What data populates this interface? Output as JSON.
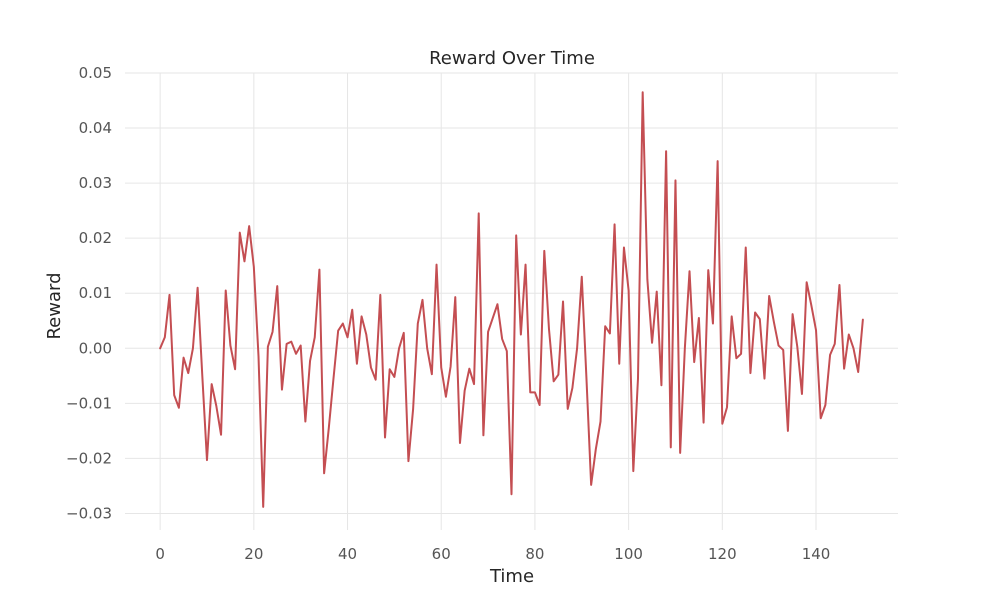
{
  "chart_data": {
    "type": "line",
    "title": "Reward Over Time",
    "xlabel": "Time",
    "ylabel": "Reward",
    "xlim": [
      -7.5,
      157.5
    ],
    "ylim": [
      -0.033,
      0.05
    ],
    "xticks": [
      0,
      20,
      40,
      60,
      80,
      100,
      120,
      140
    ],
    "xtick_labels": [
      "0",
      "20",
      "40",
      "60",
      "80",
      "100",
      "120",
      "140"
    ],
    "yticks": [
      -0.03,
      -0.02,
      -0.01,
      0.0,
      0.01,
      0.02,
      0.03,
      0.04,
      0.05
    ],
    "ytick_labels": [
      "−0.03",
      "−0.02",
      "−0.01",
      "0.00",
      "0.01",
      "0.02",
      "0.03",
      "0.04",
      "0.05"
    ],
    "grid": true,
    "line_color": "#c44e52",
    "series": [
      {
        "x": [
          0,
          1,
          2,
          3,
          4,
          5,
          6,
          7,
          8,
          9,
          10,
          11,
          12,
          13,
          14,
          15,
          16,
          17,
          18,
          19,
          20,
          21,
          22,
          23,
          24,
          25,
          26,
          27,
          28,
          29,
          30,
          31,
          32,
          33,
          34,
          35,
          36,
          37,
          38,
          39,
          40,
          41,
          42,
          43,
          44,
          45,
          46,
          47,
          48,
          49,
          50,
          51,
          52,
          53,
          54,
          55,
          56,
          57,
          58,
          59,
          60,
          61,
          62,
          63,
          64,
          65,
          66,
          67,
          68,
          69,
          70,
          71,
          72,
          73,
          74,
          75,
          76,
          77,
          78,
          79,
          80,
          81,
          82,
          83,
          84,
          85,
          86,
          87,
          88,
          89,
          90,
          91,
          92,
          93,
          94,
          95,
          96,
          97,
          98,
          99,
          100,
          101,
          102,
          103,
          104,
          105,
          106,
          107,
          108,
          109,
          110,
          111,
          112,
          113,
          114,
          115,
          116,
          117,
          118,
          119,
          120,
          121,
          122,
          123,
          124,
          125,
          126,
          127,
          128,
          129,
          130,
          131,
          132,
          133,
          134,
          135,
          136,
          137,
          138,
          139,
          140,
          141,
          142,
          143,
          144,
          145,
          146,
          147,
          148,
          149,
          150
        ],
        "values": [
          0.0,
          0.002,
          0.0097,
          -0.0085,
          -0.0108,
          -0.0017,
          -0.0045,
          0.0,
          0.011,
          -0.005,
          -0.0203,
          -0.0065,
          -0.0105,
          -0.0157,
          0.0105,
          0.0005,
          -0.0038,
          0.021,
          0.0158,
          0.0222,
          0.0148,
          -0.0015,
          -0.0288,
          0.0003,
          0.003,
          0.0113,
          -0.0075,
          0.0008,
          0.0012,
          -0.001,
          0.0005,
          -0.0133,
          -0.0023,
          0.002,
          0.0143,
          -0.0227,
          -0.0145,
          -0.0055,
          0.0032,
          0.0045,
          0.002,
          0.007,
          -0.0028,
          0.0058,
          0.0025,
          -0.0035,
          -0.0057,
          0.0097,
          -0.0162,
          -0.0038,
          -0.0052,
          0.0,
          0.0028,
          -0.0205,
          -0.011,
          0.0045,
          0.0088,
          0.0,
          -0.0047,
          0.0152,
          -0.0035,
          -0.0088,
          -0.0033,
          0.0093,
          -0.0172,
          -0.0077,
          -0.0037,
          -0.0065,
          0.0245,
          -0.0158,
          0.003,
          0.0055,
          0.008,
          0.0017,
          -0.0005,
          -0.0265,
          0.0205,
          0.0025,
          0.0152,
          -0.008,
          -0.008,
          -0.0103,
          0.0177,
          0.0035,
          -0.006,
          -0.0048,
          0.0085,
          -0.011,
          -0.0072,
          0.0,
          0.013,
          -0.0055,
          -0.0248,
          -0.0183,
          -0.0133,
          0.004,
          0.0027,
          0.0225,
          -0.0028,
          0.0183,
          0.0105,
          -0.0223,
          -0.0055,
          0.0465,
          0.0125,
          0.001,
          0.0103,
          -0.0067,
          0.0358,
          -0.018,
          0.0305,
          -0.019,
          0.0,
          0.014,
          -0.0025,
          0.0055,
          -0.0135,
          0.0142,
          0.0045,
          0.034,
          -0.0137,
          -0.0107,
          0.0058,
          -0.0018,
          -0.001,
          0.0183,
          -0.0045,
          0.0065,
          0.0053,
          -0.0055,
          0.0095,
          0.0048,
          0.0005,
          -0.0003,
          -0.015,
          0.0062,
          0.0003,
          -0.0083,
          0.012,
          0.0078,
          0.0033,
          -0.0127,
          -0.0103,
          -0.0012,
          0.0008,
          0.0115,
          -0.0037,
          0.0025,
          0.0,
          -0.0043,
          0.0052
        ]
      }
    ]
  }
}
